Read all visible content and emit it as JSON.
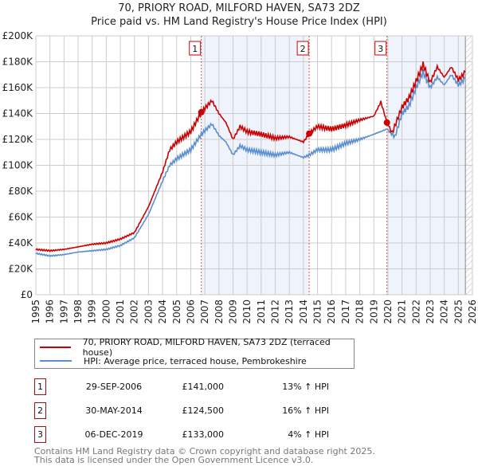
{
  "title_line1": "70, PRIORY ROAD, MILFORD HAVEN, SA73 2DZ",
  "title_line2": "Price paid vs. HM Land Registry's House Price Index (HPI)",
  "chart_data": {
    "type": "line",
    "title": "70, PRIORY ROAD, MILFORD HAVEN, SA73 2DZ — Price paid vs. HM Land Registry's House Price Index (HPI)",
    "xlim": [
      1995,
      2026
    ],
    "ylim": [
      0,
      200000
    ],
    "x_ticks": [
      "1995",
      "1996",
      "1997",
      "1998",
      "1999",
      "2000",
      "2001",
      "2002",
      "2003",
      "2004",
      "2005",
      "2006",
      "2007",
      "2008",
      "2009",
      "2010",
      "2011",
      "2012",
      "2013",
      "2014",
      "2015",
      "2016",
      "2017",
      "2018",
      "2019",
      "2020",
      "2021",
      "2022",
      "2023",
      "2024",
      "2025",
      "2026"
    ],
    "y_ticks": [
      {
        "v": 0,
        "label": "£0"
      },
      {
        "v": 20000,
        "label": "£20K"
      },
      {
        "v": 40000,
        "label": "£40K"
      },
      {
        "v": 60000,
        "label": "£60K"
      },
      {
        "v": 80000,
        "label": "£80K"
      },
      {
        "v": 100000,
        "label": "£100K"
      },
      {
        "v": 120000,
        "label": "£120K"
      },
      {
        "v": 140000,
        "label": "£140K"
      },
      {
        "v": 160000,
        "label": "£160K"
      },
      {
        "v": 180000,
        "label": "£180K"
      },
      {
        "v": 200000,
        "label": "£200K"
      }
    ],
    "grid": true,
    "forecast_hatch_from": 2025.5,
    "series": [
      {
        "name": "70, PRIORY ROAD, MILFORD HAVEN, SA73 2DZ (terraced house)",
        "color": "#cc0000",
        "points": [
          [
            1995,
            35000
          ],
          [
            1996,
            34000
          ],
          [
            1997,
            35000
          ],
          [
            1998,
            37000
          ],
          [
            1999,
            39000
          ],
          [
            2000,
            40000
          ],
          [
            2001,
            43000
          ],
          [
            2002,
            48000
          ],
          [
            2003,
            68000
          ],
          [
            2004,
            95000
          ],
          [
            2004.5,
            112000
          ],
          [
            2005,
            118000
          ],
          [
            2006,
            126000
          ],
          [
            2006.75,
            141000
          ],
          [
            2007.5,
            150000
          ],
          [
            2008,
            140000
          ],
          [
            2008.5,
            133000
          ],
          [
            2009,
            120000
          ],
          [
            2009.5,
            130000
          ],
          [
            2010,
            126000
          ],
          [
            2011,
            124000
          ],
          [
            2012,
            121000
          ],
          [
            2013,
            122000
          ],
          [
            2014,
            118000
          ],
          [
            2014.41,
            124500
          ],
          [
            2015,
            130000
          ],
          [
            2016,
            128000
          ],
          [
            2017,
            131000
          ],
          [
            2018,
            135000
          ],
          [
            2019,
            138000
          ],
          [
            2019.5,
            149000
          ],
          [
            2019.93,
            133000
          ],
          [
            2020.3,
            125000
          ],
          [
            2021,
            145000
          ],
          [
            2021.5,
            152000
          ],
          [
            2022,
            165000
          ],
          [
            2022.5,
            178000
          ],
          [
            2023,
            164000
          ],
          [
            2023.5,
            176000
          ],
          [
            2024,
            168000
          ],
          [
            2024.5,
            176000
          ],
          [
            2025,
            166000
          ],
          [
            2025.5,
            172000
          ]
        ]
      },
      {
        "name": "HPI: Average price, terraced house, Pembrokeshire",
        "color": "#5b8fd0",
        "points": [
          [
            1995,
            32000
          ],
          [
            1996,
            30000
          ],
          [
            1997,
            31000
          ],
          [
            1998,
            33000
          ],
          [
            1999,
            34000
          ],
          [
            2000,
            35000
          ],
          [
            2001,
            38000
          ],
          [
            2002,
            44000
          ],
          [
            2003,
            62000
          ],
          [
            2004,
            88000
          ],
          [
            2004.5,
            100000
          ],
          [
            2005,
            105000
          ],
          [
            2006,
            112000
          ],
          [
            2006.75,
            124000
          ],
          [
            2007.5,
            132000
          ],
          [
            2008,
            123000
          ],
          [
            2008.5,
            118000
          ],
          [
            2009,
            108000
          ],
          [
            2009.5,
            115000
          ],
          [
            2010,
            112000
          ],
          [
            2011,
            110000
          ],
          [
            2012,
            108000
          ],
          [
            2013,
            110000
          ],
          [
            2014,
            106000
          ],
          [
            2014.41,
            108000
          ],
          [
            2015,
            112000
          ],
          [
            2016,
            112000
          ],
          [
            2017,
            117000
          ],
          [
            2018,
            120000
          ],
          [
            2019,
            124000
          ],
          [
            2019.93,
            128000
          ],
          [
            2020.5,
            122000
          ],
          [
            2021,
            140000
          ],
          [
            2021.5,
            146000
          ],
          [
            2022,
            160000
          ],
          [
            2022.5,
            172000
          ],
          [
            2023,
            160000
          ],
          [
            2023.5,
            168000
          ],
          [
            2024,
            162000
          ],
          [
            2024.5,
            170000
          ],
          [
            2025,
            162000
          ],
          [
            2025.5,
            167000
          ]
        ]
      }
    ],
    "sales": [
      {
        "label": "1",
        "x": 2006.75,
        "y": 141000
      },
      {
        "label": "2",
        "x": 2014.41,
        "y": 124500
      },
      {
        "label": "3",
        "x": 2019.93,
        "y": 133000
      }
    ]
  },
  "legend": {
    "red": "70, PRIORY ROAD, MILFORD HAVEN, SA73 2DZ (terraced house)",
    "blue": "HPI: Average price, terraced house, Pembrokeshire"
  },
  "table": [
    {
      "num": "1",
      "date": "29-SEP-2006",
      "price": "£141,000",
      "hpi": "13% ↑ HPI"
    },
    {
      "num": "2",
      "date": "30-MAY-2014",
      "price": "£124,500",
      "hpi": "16% ↑ HPI"
    },
    {
      "num": "3",
      "date": "06-DEC-2019",
      "price": "£133,000",
      "hpi": "4% ↑ HPI"
    }
  ],
  "footer_line1": "Contains HM Land Registry data © Crown copyright and database right 2025.",
  "footer_line2": "This data is licensed under the Open Government Licence v3.0."
}
